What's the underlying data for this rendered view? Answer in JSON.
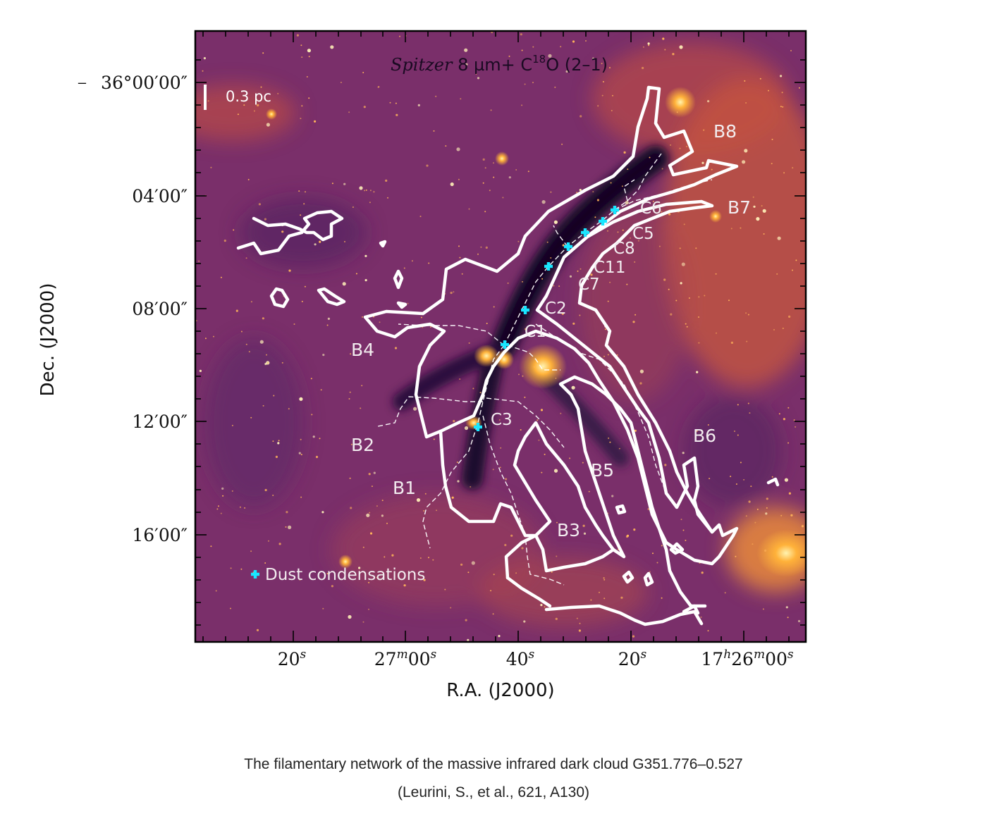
{
  "image": {
    "title": "Spitzer 8 µm+ C18O (2–1)",
    "title_parts": {
      "italic": "Spitzer",
      "rest_a": " 8 µm+ C",
      "sup": "18",
      "rest_b": "O (2–1)"
    },
    "scalebar_label": "0.3 pc",
    "legend_label": "Dust condensations",
    "colors": {
      "background_base": "#7a2f6a",
      "bright": "#ffb23a",
      "dark_filament": "#1c0a2e",
      "contour": "#ffffff",
      "marker": "#19e6ff"
    },
    "regions": {
      "B1": "B1",
      "B2": "B2",
      "B3": "B3",
      "B4": "B4",
      "B5": "B5",
      "B6": "B6",
      "B7": "B7",
      "B8": "B8"
    },
    "clumps": {
      "C1": "C1",
      "C2": "C2",
      "C3": "C3",
      "C5": "C5",
      "C6": "C6",
      "C7": "C7",
      "C8": "C8",
      "C11": "C11"
    }
  },
  "axes": {
    "ylabel": "Dec.  (J2000)",
    "xlabel": "R.A.  (J2000)",
    "y_prefix": "−",
    "y_ticks": [
      "36°00′00″",
      "04′00″",
      "08′00″",
      "12′00″",
      "16′00″"
    ],
    "x_ticks": {
      "t1": {
        "num": "20",
        "sup": "s"
      },
      "t2": {
        "num1": "27",
        "sup1": "m",
        "num2": "00",
        "sup2": "s"
      },
      "t3": {
        "num": "40",
        "sup": "s"
      },
      "t4": {
        "num": "20",
        "sup": "s"
      },
      "t5": {
        "num1": "17",
        "sup1": "h",
        "num2": "26",
        "sup2": "m",
        "num3": "00",
        "sup3": "s"
      }
    }
  },
  "caption": {
    "line1": "The filamentary network of the massive infrared dark cloud G351.776–0.527",
    "line2": "(Leurini, S., et al., 621, A130)"
  }
}
